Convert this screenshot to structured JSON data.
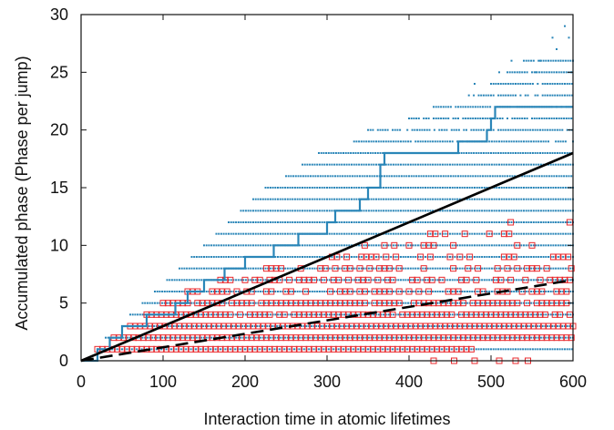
{
  "chart_data": {
    "type": "scatter",
    "xlabel": "Interaction time in atomic lifetimes",
    "ylabel": "Accumulated phase (Phase per jump)",
    "xlim": [
      0,
      600
    ],
    "ylim": [
      0,
      30
    ],
    "xticks": [
      0,
      100,
      200,
      300,
      400,
      500,
      600
    ],
    "yticks": [
      0,
      5,
      10,
      15,
      20,
      25,
      30
    ],
    "grid": false,
    "colors": {
      "blue": "#2a86b8",
      "red": "#e8282c",
      "black": "#000000"
    },
    "series": [
      {
        "kind": "scatter-dots",
        "color": "#2a86b8",
        "levels": [
          {
            "y": 1,
            "x_range": [
              20,
              600
            ]
          },
          {
            "y": 2,
            "x_range": [
              30,
              600
            ]
          },
          {
            "y": 3,
            "x_range": [
              50,
              600
            ]
          },
          {
            "y": 4,
            "x_range": [
              60,
              600
            ]
          },
          {
            "y": 5,
            "x_range": [
              75,
              600
            ]
          },
          {
            "y": 6,
            "x_range": [
              90,
              600
            ]
          },
          {
            "y": 7,
            "x_range": [
              105,
              600
            ]
          },
          {
            "y": 8,
            "x_range": [
              120,
              600
            ]
          },
          {
            "y": 9,
            "x_range": [
              135,
              600
            ]
          },
          {
            "y": 10,
            "x_range": [
              150,
              600
            ]
          },
          {
            "y": 11,
            "x_range": [
              165,
              600
            ]
          },
          {
            "y": 12,
            "x_range": [
              180,
              600
            ]
          },
          {
            "y": 13,
            "x_range": [
              195,
              600
            ]
          },
          {
            "y": 14,
            "x_range": [
              210,
              600
            ]
          },
          {
            "y": 15,
            "x_range": [
              225,
              600
            ]
          },
          {
            "y": 16,
            "x_range": [
              250,
              600
            ]
          },
          {
            "y": 17,
            "x_range": [
              270,
              600
            ]
          },
          {
            "y": 18,
            "x_range": [
              290,
              600
            ]
          },
          {
            "y": 19,
            "x_range": [
              330,
              600
            ]
          },
          {
            "y": 20,
            "x_range": [
              350,
              600
            ]
          },
          {
            "y": 21,
            "x_range": [
              400,
              600
            ]
          },
          {
            "y": 22,
            "x_range": [
              430,
              600
            ]
          },
          {
            "y": 23,
            "x_range": [
              470,
              600
            ]
          },
          {
            "y": 24,
            "x_range": [
              500,
              600
            ]
          },
          {
            "y": 25,
            "x_range": [
              520,
              600
            ]
          },
          {
            "y": 26,
            "x_range": [
              540,
              600
            ]
          }
        ],
        "sparse_points": [
          {
            "x": 480,
            "y": 24
          },
          {
            "x": 510,
            "y": 25
          },
          {
            "x": 525,
            "y": 26
          },
          {
            "x": 535,
            "y": 25
          },
          {
            "x": 560,
            "y": 26
          },
          {
            "x": 575,
            "y": 28
          },
          {
            "x": 585,
            "y": 26
          },
          {
            "x": 590,
            "y": 29
          },
          {
            "x": 595,
            "y": 28
          },
          {
            "x": 600,
            "y": 26
          },
          {
            "x": 598,
            "y": 25
          },
          {
            "x": 566,
            "y": 24
          },
          {
            "x": 555,
            "y": 25
          },
          {
            "x": 580,
            "y": 27
          }
        ]
      },
      {
        "kind": "scatter-squares",
        "color": "#e8282c",
        "levels": [
          {
            "y": 1,
            "x_range": [
              20,
              480
            ],
            "density": 1.0
          },
          {
            "y": 2,
            "x_range": [
              40,
              600
            ],
            "density": 1.0
          },
          {
            "y": 3,
            "x_range": [
              60,
              600
            ],
            "density": 1.0
          },
          {
            "y": 4,
            "x_range": [
              80,
              600
            ],
            "density": 0.95
          },
          {
            "y": 5,
            "x_range": [
              100,
              600
            ],
            "density": 0.9
          },
          {
            "y": 6,
            "x_range": [
              130,
              600
            ],
            "density": 0.6
          },
          {
            "y": 7,
            "x_range": [
              170,
              600
            ],
            "density": 0.5
          },
          {
            "y": 8,
            "x_range": [
              220,
              600
            ],
            "density": 0.4
          },
          {
            "y": 9,
            "x_range": [
              300,
              600
            ],
            "density": 0.3
          },
          {
            "y": 10,
            "x_range": [
              340,
              600
            ],
            "density": 0.2
          },
          {
            "y": 11,
            "x_range": [
              420,
              600
            ],
            "density": 0.1
          },
          {
            "y": 12,
            "x_range": [
              500,
              600
            ],
            "density": 0.1
          }
        ],
        "sparse_points": [
          {
            "x": 430,
            "y": 0
          },
          {
            "x": 455,
            "y": 0
          },
          {
            "x": 480,
            "y": 0
          },
          {
            "x": 510,
            "y": 0
          },
          {
            "x": 530,
            "y": 0
          },
          {
            "x": 545,
            "y": 0
          }
        ]
      },
      {
        "kind": "step",
        "color": "#2a86b8",
        "points": [
          [
            0,
            0
          ],
          [
            20,
            0
          ],
          [
            20,
            1
          ],
          [
            35,
            1
          ],
          [
            35,
            2
          ],
          [
            50,
            2
          ],
          [
            50,
            3
          ],
          [
            80,
            3
          ],
          [
            80,
            4
          ],
          [
            115,
            4
          ],
          [
            115,
            5
          ],
          [
            130,
            5
          ],
          [
            130,
            6
          ],
          [
            150,
            6
          ],
          [
            150,
            7
          ],
          [
            175,
            7
          ],
          [
            175,
            8
          ],
          [
            200,
            8
          ],
          [
            200,
            9
          ],
          [
            235,
            9
          ],
          [
            235,
            10
          ],
          [
            265,
            10
          ],
          [
            265,
            11
          ],
          [
            300,
            11
          ],
          [
            300,
            12
          ],
          [
            310,
            12
          ],
          [
            310,
            13
          ],
          [
            340,
            13
          ],
          [
            340,
            14
          ],
          [
            350,
            14
          ],
          [
            350,
            15
          ],
          [
            365,
            15
          ],
          [
            365,
            17
          ],
          [
            370,
            17
          ],
          [
            370,
            18
          ],
          [
            460,
            18
          ],
          [
            460,
            19
          ],
          [
            495,
            19
          ],
          [
            495,
            20
          ],
          [
            500,
            20
          ],
          [
            500,
            21
          ],
          [
            505,
            21
          ],
          [
            505,
            22
          ],
          [
            600,
            22
          ]
        ]
      },
      {
        "kind": "line",
        "style": "solid",
        "color": "#000000",
        "points": [
          [
            0,
            0
          ],
          [
            600,
            18
          ]
        ]
      },
      {
        "kind": "line",
        "style": "dashed",
        "color": "#000000",
        "points": [
          [
            0,
            0
          ],
          [
            600,
            7
          ]
        ]
      }
    ]
  }
}
